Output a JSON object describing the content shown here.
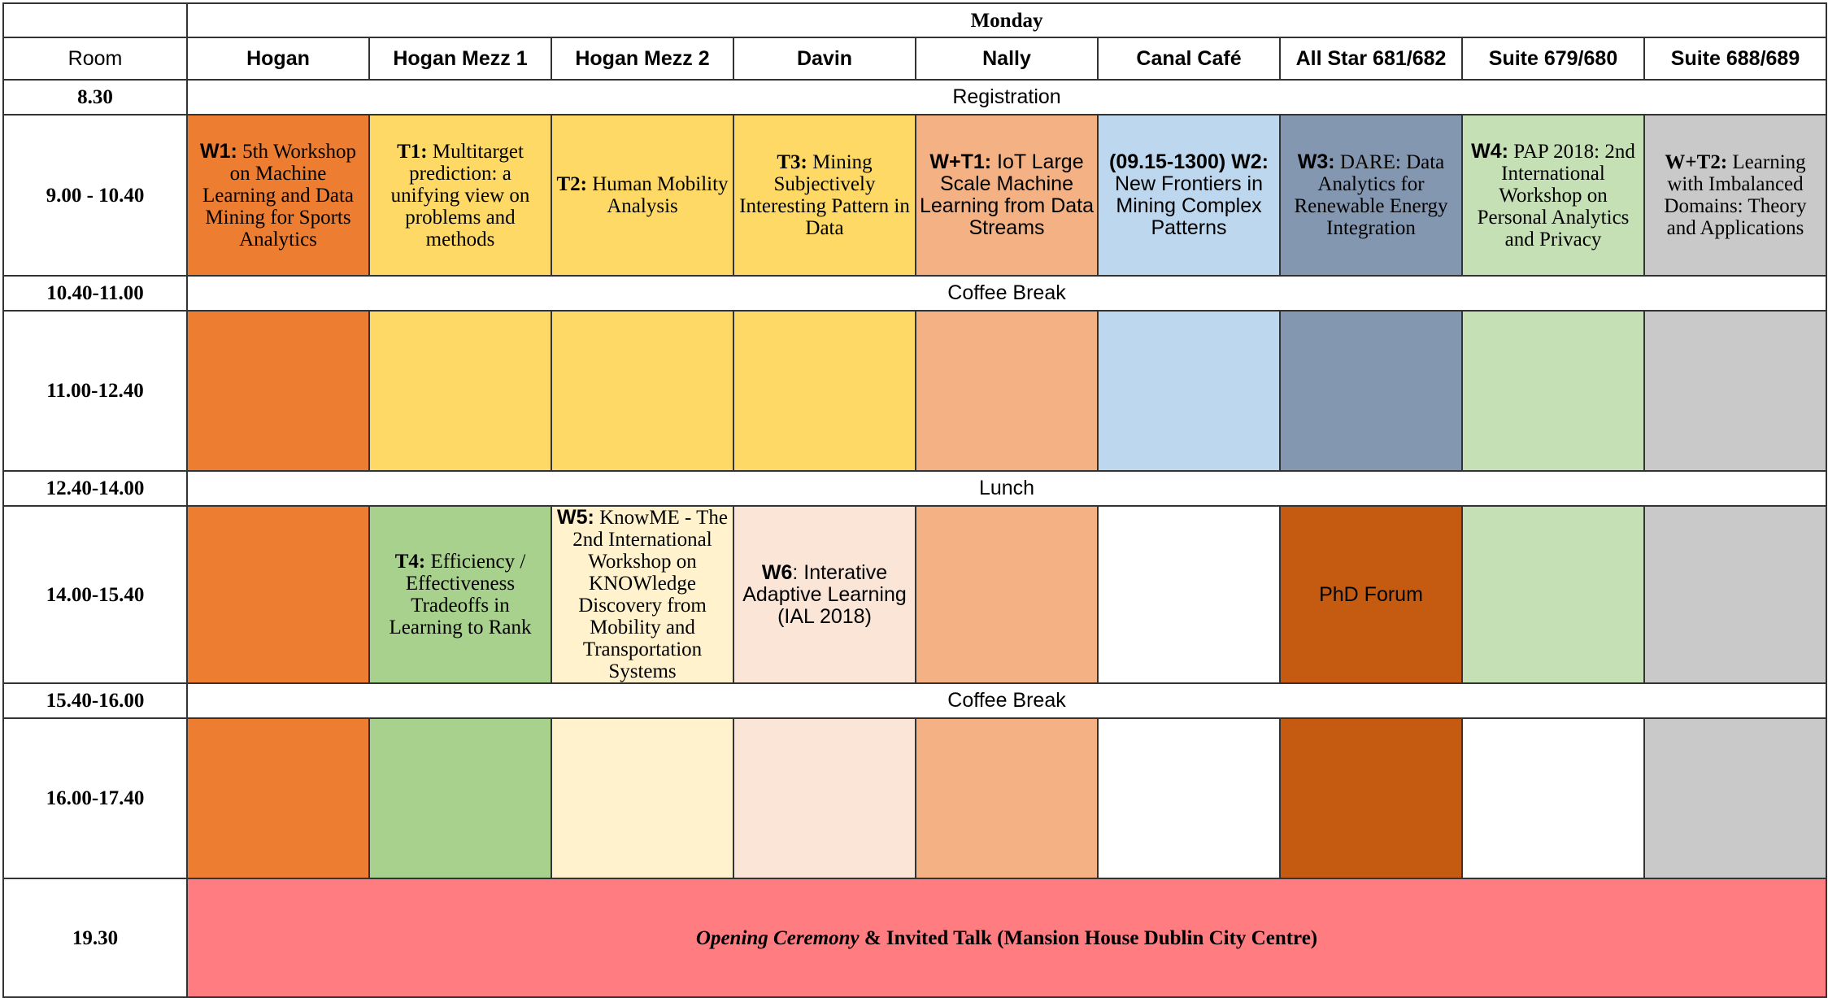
{
  "day": "Monday",
  "room_label": "Room",
  "rooms": [
    "Hogan",
    "Hogan Mezz 1",
    "Hogan Mezz 2",
    "Davin",
    "Nally",
    "Canal Café",
    "All Star 681/682",
    "Suite 679/680",
    "Suite 688/689"
  ],
  "times": {
    "t1": "8.30",
    "t2": "9.00 - 10.40",
    "t3": "10.40-11.00",
    "t4": "11.00-12.40",
    "t5": "12.40-14.00",
    "t6": "14.00-15.40",
    "t7": "15.40-16.00",
    "t8": "16.00-17.40",
    "t9": "19.30"
  },
  "breaks": {
    "registration": "Registration",
    "coffee1": "Coffee Break",
    "lunch": "Lunch",
    "coffee2": "Coffee Break"
  },
  "sessions": {
    "w1": {
      "code": "W1:",
      "title": " 5th Workshop on Machine Learning and Data Mining for Sports Analytics"
    },
    "t1": {
      "code": "T1:",
      "title": " Multitarget prediction: a unifying view on problems and methods"
    },
    "t2": {
      "code": "T2:",
      "title": " Human Mobility Analysis"
    },
    "t3": {
      "code": "T3:",
      "title": " Mining Subjectively Interesting Pattern in Data"
    },
    "wt1": {
      "code": "W+T1:",
      "title": " IoT Large Scale Machine Learning from Data Streams"
    },
    "w2": {
      "code": "(09.15-1300) W2:",
      "title": " New Frontiers in Mining Complex Patterns"
    },
    "w3": {
      "code": "W3:",
      "title": " DARE: Data Analytics for Renewable Energy Integration"
    },
    "w4": {
      "code": "W4:",
      "title": " PAP 2018: 2nd International Workshop on Personal Analytics and Privacy"
    },
    "wt2": {
      "code": "W+T2:",
      "title": " Learning with Imbalanced Domains: Theory and Applications"
    },
    "t4": {
      "code": "T4:",
      "title": " Efficiency / Effectiveness Tradeoffs in Learning to Rank"
    },
    "w5": {
      "code": "W5:",
      "title": " KnowME - The 2nd International Workshop on KNOWledge Discovery from Mobility and Transportation Systems"
    },
    "w6": {
      "code": "W6",
      "title": ": Interative Adaptive Learning (IAL 2018)"
    },
    "phd": {
      "title": "PhD Forum"
    }
  },
  "ceremony": {
    "italic": "Opening Ceremony",
    "rest": " & Invited Talk (Mansion House Dublin City Centre)"
  },
  "colors": {
    "orange": "#ED7D31",
    "yellow": "#FFD966",
    "salmon": "#F4B183",
    "lightblue": "#BDD7EE",
    "slate": "#8497B0",
    "lightgreen": "#C5E0B4",
    "gray": "#C9C9C9",
    "green": "#A9D18E",
    "cream": "#FFF2CC",
    "peach": "#FBE5D6",
    "rust": "#C55A11",
    "red": "#FF7C80"
  }
}
